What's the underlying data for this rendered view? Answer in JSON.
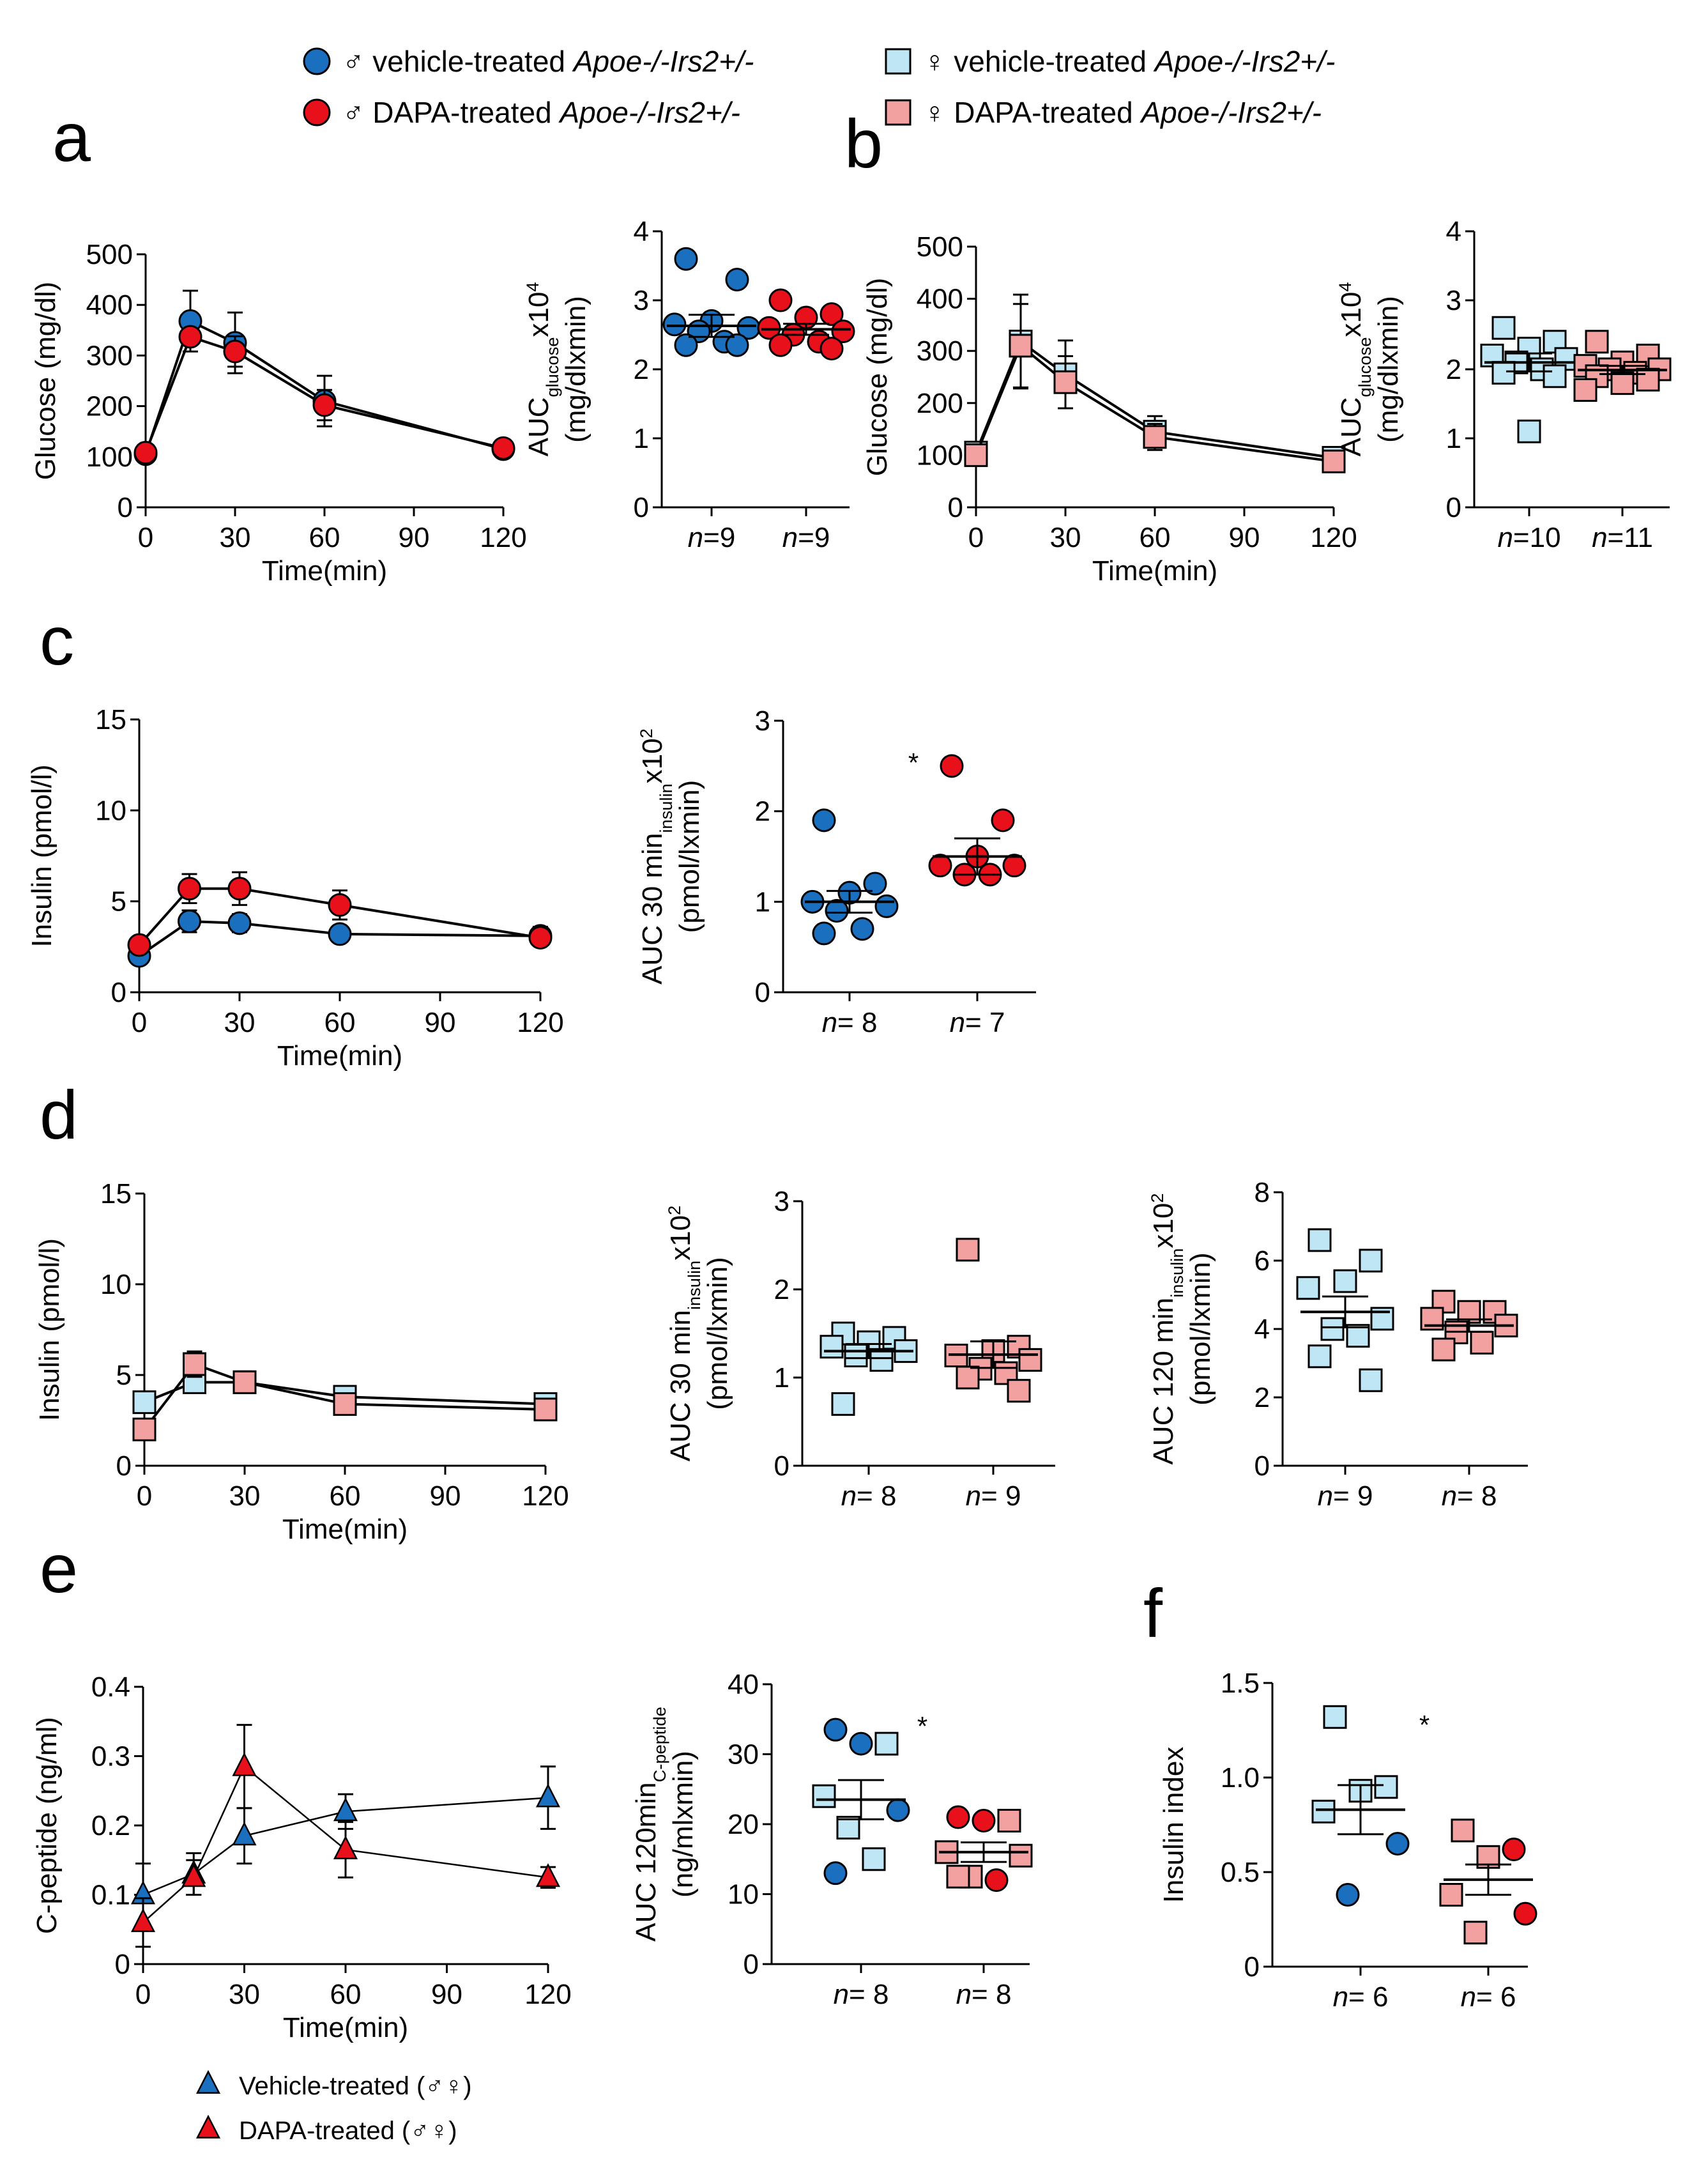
{
  "legend": {
    "items": [
      {
        "symbol": "♂",
        "text": "vehicle-treated",
        "genotype": "Apoe-/-Irs2+/-",
        "shape": "circle",
        "color": "#1a6fbf"
      },
      {
        "symbol": "♂",
        "text": "DAPA-treated",
        "genotype": "Apoe-/-Irs2+/-",
        "shape": "circle",
        "color": "#e8101a"
      },
      {
        "symbol": "♀",
        "text": "vehicle-treated",
        "genotype": "Apoe-/-Irs2+/-",
        "shape": "square",
        "color": "#bfe6f5"
      },
      {
        "symbol": "♀",
        "text": "DAPA-treated",
        "genotype": "Apoe-/-Irs2+/-",
        "shape": "square",
        "color": "#f2a0a0"
      }
    ],
    "triangles": [
      {
        "text": "Vehicle-treated (♂♀)",
        "color": "#1a6fbf"
      },
      {
        "text": "DAPA-treated (♂♀)",
        "color": "#e8101a"
      }
    ]
  },
  "colors": {
    "male_vehicle": "#1a6fbf",
    "male_dapa": "#e8101a",
    "female_vehicle": "#bfe6f5",
    "female_dapa": "#f2a0a0"
  },
  "chart_data": [
    {
      "id": "a-line",
      "panel": "a",
      "type": "line",
      "ylabel": "Glucose (mg/dl)",
      "xlabel": "Time(min)",
      "ylim": [
        0,
        500
      ],
      "yticks": [
        0,
        100,
        200,
        300,
        400,
        500
      ],
      "xlim": [
        0,
        120
      ],
      "xticks": [
        0,
        30,
        60,
        90,
        120
      ],
      "series": [
        {
          "name": "♂ vehicle-treated",
          "marker": "circle",
          "color": "#1a6fbf",
          "x": [
            0,
            15,
            30,
            60,
            120
          ],
          "y": [
            105,
            368,
            325,
            210,
            115
          ],
          "err": [
            10,
            60,
            60,
            50,
            15
          ]
        },
        {
          "name": "♂ DAPA-treated",
          "marker": "circle",
          "color": "#e8101a",
          "x": [
            0,
            15,
            30,
            60,
            120
          ],
          "y": [
            108,
            337,
            308,
            202,
            117
          ],
          "err": [
            10,
            15,
            30,
            30,
            15
          ]
        }
      ]
    },
    {
      "id": "a-dot",
      "panel": "a",
      "type": "scatter",
      "ylabel": "AUCglucosex10⁴ (mg/dlxmin)",
      "ylim": [
        0,
        4
      ],
      "yticks": [
        0,
        1,
        2,
        3,
        4
      ],
      "groups": [
        {
          "label": "n=9",
          "marker": "circle",
          "color": "#1a6fbf",
          "values": [
            3.6,
            3.3,
            2.7,
            2.65,
            2.6,
            2.55,
            2.4,
            2.35,
            2.35
          ],
          "mean": 2.63,
          "sem": 0.16
        },
        {
          "label": "n=9",
          "marker": "circle",
          "color": "#e8101a",
          "values": [
            3.0,
            2.8,
            2.75,
            2.6,
            2.55,
            2.5,
            2.4,
            2.35,
            2.3
          ],
          "mean": 2.58,
          "sem": 0.08
        }
      ]
    },
    {
      "id": "b-line",
      "panel": "b",
      "type": "line",
      "ylabel": "Glucose (mg/dl)",
      "xlabel": "Time(min)",
      "ylim": [
        0,
        500
      ],
      "yticks": [
        0,
        100,
        200,
        300,
        400,
        500
      ],
      "xlim": [
        0,
        120
      ],
      "xticks": [
        0,
        30,
        60,
        90,
        120
      ],
      "series": [
        {
          "name": "♀ vehicle-treated",
          "marker": "square",
          "color": "#bfe6f5",
          "x": [
            0,
            15,
            30,
            60,
            120
          ],
          "y": [
            105,
            318,
            255,
            145,
            95
          ],
          "err": [
            10,
            90,
            65,
            30,
            10
          ]
        },
        {
          "name": "♀ DAPA-treated",
          "marker": "square",
          "color": "#f2a0a0",
          "x": [
            0,
            15,
            30,
            60,
            120
          ],
          "y": [
            100,
            310,
            240,
            135,
            88
          ],
          "err": [
            10,
            80,
            50,
            25,
            10
          ]
        }
      ]
    },
    {
      "id": "b-dot",
      "panel": "b",
      "type": "scatter",
      "ylabel": "AUCglucosex10⁴ (mg/dlxmin)",
      "ylim": [
        0,
        4
      ],
      "yticks": [
        0,
        1,
        2,
        3,
        4
      ],
      "groups": [
        {
          "label": "n=10",
          "marker": "square",
          "color": "#bfe6f5",
          "values": [
            2.6,
            2.4,
            2.3,
            2.2,
            2.15,
            2.1,
            2.0,
            1.95,
            1.9,
            1.1
          ],
          "mean": 2.1,
          "sem": 0.13
        },
        {
          "label": "n=11",
          "marker": "square",
          "color": "#f2a0a0",
          "values": [
            2.4,
            2.2,
            2.1,
            2.05,
            2.0,
            2.0,
            1.95,
            1.9,
            1.85,
            1.8,
            1.7
          ],
          "mean": 1.99,
          "sem": 0.06
        }
      ]
    },
    {
      "id": "c-line",
      "panel": "c",
      "type": "line",
      "ylabel": "Insulin (pmol/l)",
      "xlabel": "Time(min)",
      "ylim": [
        0,
        15
      ],
      "yticks": [
        0,
        5,
        10,
        15
      ],
      "xlim": [
        0,
        120
      ],
      "xticks": [
        0,
        30,
        60,
        90,
        120
      ],
      "series": [
        {
          "name": "♂ vehicle-treated",
          "marker": "circle",
          "color": "#1a6fbf",
          "x": [
            0,
            15,
            30,
            60,
            120
          ],
          "y": [
            2.0,
            3.9,
            3.8,
            3.2,
            3.1
          ],
          "err": [
            0.3,
            0.6,
            0.5,
            0.4,
            0.5
          ]
        },
        {
          "name": "♂ DAPA-treated",
          "marker": "circle",
          "color": "#e8101a",
          "x": [
            0,
            15,
            30,
            60,
            120
          ],
          "y": [
            2.6,
            5.7,
            5.7,
            4.8,
            3.0
          ],
          "err": [
            0.4,
            0.8,
            0.9,
            0.8,
            0.4
          ]
        }
      ]
    },
    {
      "id": "c-dot",
      "panel": "c",
      "type": "scatter",
      "ylabel": "AUC 30 mininsulinx10² (pmol/lxmin)",
      "ylim": [
        0,
        3
      ],
      "yticks": [
        0,
        1,
        2,
        3
      ],
      "annotation": "*",
      "groups": [
        {
          "label": "n= 8",
          "marker": "circle",
          "color": "#1a6fbf",
          "values": [
            1.9,
            1.2,
            1.1,
            1.0,
            0.95,
            0.9,
            0.7,
            0.65
          ],
          "mean": 1.0,
          "sem": 0.12
        },
        {
          "label": "n= 7",
          "marker": "circle",
          "color": "#e8101a",
          "values": [
            2.5,
            1.9,
            1.5,
            1.4,
            1.4,
            1.3,
            1.3
          ],
          "mean": 1.5,
          "sem": 0.2
        }
      ]
    },
    {
      "id": "d-line",
      "panel": "d",
      "type": "line",
      "ylabel": "Insulin (pmol/l)",
      "xlabel": "Time(min)",
      "ylim": [
        0,
        15
      ],
      "yticks": [
        0,
        5,
        10,
        15
      ],
      "xlim": [
        0,
        120
      ],
      "xticks": [
        0,
        30,
        60,
        90,
        120
      ],
      "series": [
        {
          "name": "♀ vehicle-treated",
          "marker": "square",
          "color": "#bfe6f5",
          "x": [
            0,
            15,
            30,
            60,
            120
          ],
          "y": [
            3.5,
            4.6,
            4.6,
            3.8,
            3.4
          ],
          "err": [
            0.5,
            0.5,
            0.5,
            0.4,
            0.3
          ]
        },
        {
          "name": "♀ DAPA-treated",
          "marker": "square",
          "color": "#f2a0a0",
          "x": [
            0,
            15,
            30,
            60,
            120
          ],
          "y": [
            2.0,
            5.6,
            4.6,
            3.4,
            3.1
          ],
          "err": [
            0.3,
            0.7,
            0.6,
            0.4,
            0.3
          ]
        }
      ]
    },
    {
      "id": "d-dot30",
      "panel": "d",
      "type": "scatter",
      "ylabel": "AUC 30 mininsulinx10² (pmol/lxmin)",
      "ylim": [
        0,
        3
      ],
      "yticks": [
        0,
        1,
        2,
        3
      ],
      "groups": [
        {
          "label": "n= 8",
          "marker": "square",
          "color": "#bfe6f5",
          "values": [
            1.5,
            1.45,
            1.4,
            1.35,
            1.3,
            1.25,
            1.2,
            0.7
          ],
          "mean": 1.3,
          "sem": 0.08
        },
        {
          "label": "n= 9",
          "marker": "square",
          "color": "#f2a0a0",
          "values": [
            2.45,
            1.35,
            1.3,
            1.25,
            1.2,
            1.1,
            1.05,
            1.0,
            0.85
          ],
          "mean": 1.26,
          "sem": 0.15
        }
      ]
    },
    {
      "id": "d-dot120",
      "panel": "d",
      "type": "scatter",
      "ylabel": "AUC 120 mininsulinx10² (pmol/lxmin)",
      "ylim": [
        0,
        8
      ],
      "yticks": [
        0,
        2,
        4,
        6,
        8
      ],
      "groups": [
        {
          "label": "n= 9",
          "marker": "square",
          "color": "#bfe6f5",
          "values": [
            6.6,
            6.0,
            5.4,
            5.2,
            4.3,
            4.0,
            3.8,
            3.2,
            2.5
          ],
          "mean": 4.5,
          "sem": 0.45
        },
        {
          "label": "n= 8",
          "marker": "square",
          "color": "#f2a0a0",
          "values": [
            4.8,
            4.5,
            4.5,
            4.3,
            4.1,
            3.9,
            3.6,
            3.4
          ],
          "mean": 4.1,
          "sem": 0.18
        }
      ]
    },
    {
      "id": "e-line",
      "panel": "e",
      "type": "line",
      "ylabel": "C-peptide (ng/ml)",
      "xlabel": "Time(min)",
      "ylim": [
        0,
        0.4
      ],
      "yticks": [
        "0",
        "0.1",
        "0.2",
        "0.3",
        "0.4"
      ],
      "yvals": [
        0,
        0.1,
        0.2,
        0.3,
        0.4
      ],
      "xlim": [
        0,
        120
      ],
      "xticks": [
        0,
        30,
        60,
        90,
        120
      ],
      "series": [
        {
          "name": "Vehicle-treated (♂♀)",
          "marker": "triangle",
          "color": "#1a6fbf",
          "x": [
            0,
            15,
            30,
            60,
            120
          ],
          "y": [
            0.1,
            0.13,
            0.185,
            0.22,
            0.24
          ],
          "err": [
            0.045,
            0.03,
            0.04,
            0.025,
            0.045
          ]
        },
        {
          "name": "DAPA-treated (♂♀)",
          "marker": "triangle",
          "color": "#e8101a",
          "x": [
            0,
            15,
            30,
            60,
            120
          ],
          "y": [
            0.06,
            0.125,
            0.285,
            0.165,
            0.125
          ],
          "err": [
            0.035,
            0.025,
            0.06,
            0.04,
            0.015
          ]
        }
      ]
    },
    {
      "id": "e-dot",
      "panel": "e",
      "type": "scatter",
      "ylabel": "AUC 120minC-peptide (ng/mlxmin)",
      "ylim": [
        0,
        40
      ],
      "yticks": [
        0,
        10,
        20,
        30,
        40
      ],
      "annotation": "*",
      "groups": [
        {
          "label": "n= 8",
          "mixed": true,
          "mean": 23.5,
          "sem": 2.8,
          "points": [
            {
              "v": 33.5,
              "marker": "circle",
              "color": "#1a6fbf"
            },
            {
              "v": 31.5,
              "marker": "square",
              "color": "#bfe6f5"
            },
            {
              "v": 31.5,
              "marker": "circle",
              "color": "#1a6fbf"
            },
            {
              "v": 24.0,
              "marker": "square",
              "color": "#bfe6f5"
            },
            {
              "v": 22.0,
              "marker": "circle",
              "color": "#1a6fbf"
            },
            {
              "v": 19.5,
              "marker": "square",
              "color": "#bfe6f5"
            },
            {
              "v": 15.0,
              "marker": "square",
              "color": "#bfe6f5"
            },
            {
              "v": 13.0,
              "marker": "circle",
              "color": "#1a6fbf"
            }
          ]
        },
        {
          "label": "n= 8",
          "mixed": true,
          "mean": 16.0,
          "sem": 1.4,
          "points": [
            {
              "v": 21.0,
              "marker": "circle",
              "color": "#e8101a"
            },
            {
              "v": 20.5,
              "marker": "square",
              "color": "#f2a0a0"
            },
            {
              "v": 20.5,
              "marker": "circle",
              "color": "#e8101a"
            },
            {
              "v": 16.0,
              "marker": "square",
              "color": "#f2a0a0"
            },
            {
              "v": 15.5,
              "marker": "square",
              "color": "#f2a0a0"
            },
            {
              "v": 12.5,
              "marker": "square",
              "color": "#f2a0a0"
            },
            {
              "v": 12.0,
              "marker": "circle",
              "color": "#e8101a"
            },
            {
              "v": 12.5,
              "marker": "square",
              "color": "#f2a0a0"
            }
          ]
        }
      ]
    },
    {
      "id": "f-dot",
      "panel": "f",
      "type": "scatter",
      "ylabel": "Insulin index",
      "ylim": [
        0,
        1.5
      ],
      "yticks": [
        "0",
        "0.5",
        "1.0",
        "1.5"
      ],
      "yvals": [
        0,
        0.5,
        1.0,
        1.5
      ],
      "annotation": "*",
      "groups": [
        {
          "label": "n= 6",
          "mixed": true,
          "mean": 0.83,
          "sem": 0.13,
          "points": [
            {
              "v": 1.32,
              "marker": "square",
              "color": "#bfe6f5"
            },
            {
              "v": 0.95,
              "marker": "square",
              "color": "#bfe6f5"
            },
            {
              "v": 0.93,
              "marker": "square",
              "color": "#bfe6f5"
            },
            {
              "v": 0.82,
              "marker": "square",
              "color": "#bfe6f5"
            },
            {
              "v": 0.65,
              "marker": "circle",
              "color": "#1a6fbf"
            },
            {
              "v": 0.38,
              "marker": "circle",
              "color": "#1a6fbf"
            }
          ]
        },
        {
          "label": "n= 6",
          "mixed": true,
          "mean": 0.46,
          "sem": 0.08,
          "points": [
            {
              "v": 0.72,
              "marker": "square",
              "color": "#f2a0a0"
            },
            {
              "v": 0.62,
              "marker": "circle",
              "color": "#e8101a"
            },
            {
              "v": 0.58,
              "marker": "square",
              "color": "#f2a0a0"
            },
            {
              "v": 0.38,
              "marker": "square",
              "color": "#f2a0a0"
            },
            {
              "v": 0.28,
              "marker": "circle",
              "color": "#e8101a"
            },
            {
              "v": 0.18,
              "marker": "square",
              "color": "#f2a0a0"
            }
          ]
        }
      ]
    }
  ],
  "panel_letters": [
    "a",
    "b",
    "c",
    "d",
    "e",
    "f"
  ]
}
